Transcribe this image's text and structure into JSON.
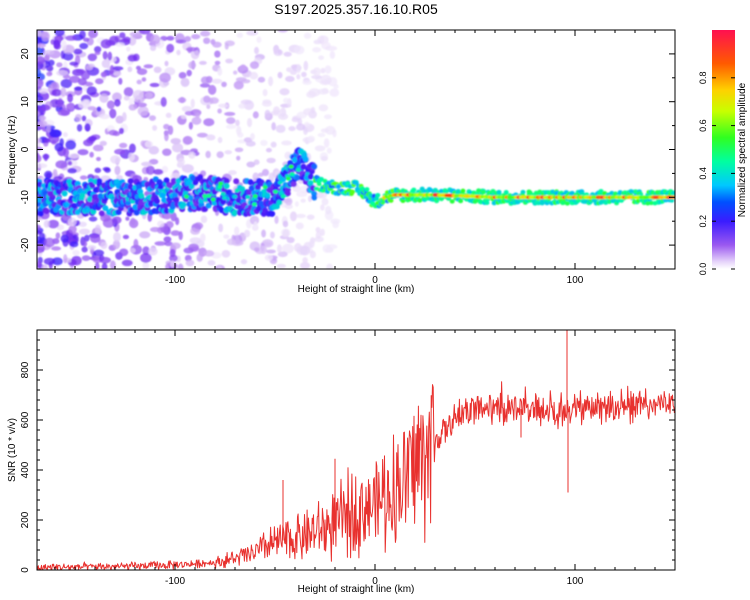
{
  "title": "S197.2025.357.16.10.R05",
  "chart_data": [
    {
      "type": "heatmap",
      "name": "spectrogram",
      "xlabel": "Height of straight line (km)",
      "ylabel": "Frequency (Hz)",
      "xlim": [
        -169,
        150
      ],
      "ylim": [
        -25,
        25
      ],
      "xticks": [
        -100,
        0,
        100
      ],
      "xtick_labels": [
        "-100",
        "0",
        "100"
      ],
      "yticks": [
        -20,
        -10,
        0,
        10,
        20
      ],
      "ytick_labels": [
        "-20",
        "-10",
        "0",
        "10",
        "20"
      ],
      "ridge": {
        "description": "dominant frequency ridge",
        "x": [
          -169,
          -120,
          -90,
          -70,
          -50,
          -38,
          -30,
          -20,
          -10,
          -5,
          0,
          5,
          10,
          30,
          60,
          100,
          130,
          150
        ],
        "freq": [
          -10,
          -10,
          -9,
          -10,
          -10,
          -3,
          -7,
          -8,
          -8,
          -9,
          -11,
          -10,
          -9.5,
          -9.5,
          -10,
          -10,
          -10,
          -10
        ]
      },
      "colorbar": {
        "label": "Normalized spectral amplitude",
        "range": [
          0,
          1
        ],
        "ticks": [
          0.0,
          0.2,
          0.4,
          0.6,
          0.8
        ],
        "tick_labels": [
          "0.0",
          "0.2",
          "0.4",
          "0.6",
          "0.8"
        ],
        "colors": [
          "#ffffff",
          "#c8a0f0",
          "#7b2cf0",
          "#2020ff",
          "#00c8ff",
          "#00ff80",
          "#40ff00",
          "#c8ff00",
          "#ffd000",
          "#ff6000",
          "#ff1050"
        ]
      }
    },
    {
      "type": "line",
      "name": "snr",
      "xlabel": "Height of straight line (km)",
      "ylabel": "SNR (10 * v/v)",
      "xlim": [
        -169,
        150
      ],
      "ylim": [
        0,
        960
      ],
      "xticks": [
        -100,
        0,
        100
      ],
      "xtick_labels": [
        "-100",
        "0",
        "100"
      ],
      "yticks": [
        0,
        200,
        400,
        600,
        800
      ],
      "ytick_labels": [
        "0",
        "200",
        "400",
        "600",
        "800"
      ],
      "color": "#e8312e",
      "trend": {
        "x": [
          -169,
          -120,
          -100,
          -80,
          -70,
          -60,
          -50,
          -40,
          -30,
          -20,
          -10,
          0,
          10,
          20,
          30,
          40,
          50,
          60,
          80,
          95,
          100,
          120,
          150
        ],
        "y": [
          10,
          15,
          20,
          30,
          45,
          70,
          110,
          130,
          150,
          180,
          240,
          270,
          320,
          420,
          520,
          600,
          640,
          650,
          640,
          630,
          640,
          650,
          660
        ]
      },
      "spikes": [
        {
          "x": 96,
          "y": 960
        },
        {
          "x": 96.5,
          "y": 310
        },
        {
          "x": -46,
          "y": 360
        },
        {
          "x": -20,
          "y": 445
        },
        {
          "x": 73,
          "y": 530
        }
      ]
    }
  ]
}
